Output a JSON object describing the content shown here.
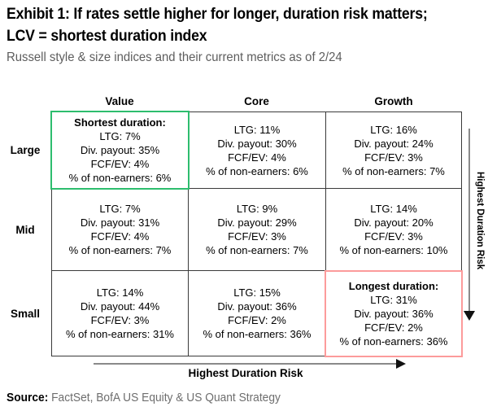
{
  "header": {
    "title_line1": "Exhibit 1: If rates settle higher for longer, duration risk matters;",
    "title_line2": "LCV = shortest duration index",
    "subtitle": "Russell style & size indices and their current metrics as of 2/24"
  },
  "matrix": {
    "column_headers": [
      "Value",
      "Core",
      "Growth"
    ],
    "rows": [
      {
        "label": "Large",
        "cells": [
          {
            "title": "Shortest duration:",
            "highlight": "green",
            "metrics": [
              "LTG: 7%",
              "Div. payout: 35%",
              "FCF/EV: 4%",
              "% of non-earners: 6%"
            ]
          },
          {
            "metrics": [
              "LTG: 11%",
              "Div. payout: 30%",
              "FCF/EV: 4%",
              "% of non-earners: 6%"
            ]
          },
          {
            "metrics": [
              "LTG: 16%",
              "Div. payout: 24%",
              "FCF/EV: 3%",
              "% of non-earners: 7%"
            ]
          }
        ]
      },
      {
        "label": "Mid",
        "cells": [
          {
            "metrics": [
              "LTG: 7%",
              "Div. payout: 31%",
              "FCF/EV: 4%",
              "% of non-earners: 7%"
            ]
          },
          {
            "metrics": [
              "LTG: 9%",
              "Div. payout: 29%",
              "FCF/EV: 3%",
              "% of non-earners: 7%"
            ]
          },
          {
            "metrics": [
              "LTG: 14%",
              "Div. payout: 20%",
              "FCF/EV: 3%",
              "% of non-earners: 10%"
            ]
          }
        ]
      },
      {
        "label": "Small",
        "cells": [
          {
            "metrics": [
              "LTG: 14%",
              "Div. payout: 44%",
              "FCF/EV: 3%",
              "% of non-earners: 31%"
            ]
          },
          {
            "metrics": [
              "LTG: 15%",
              "Div. payout: 36%",
              "FCF/EV: 2%",
              "% of non-earners: 36%"
            ]
          },
          {
            "title": "Longest duration:",
            "highlight": "red",
            "metrics": [
              "LTG: 31%",
              "Div. payout: 36%",
              "FCF/EV: 2%",
              "% of non-earners: 36%"
            ]
          }
        ]
      }
    ]
  },
  "axes": {
    "bottom_label": "Highest Duration Risk",
    "right_label": "Highest Duration Risk"
  },
  "source": {
    "label": "Source:",
    "text": " FactSet, BofA US Equity & US Quant Strategy"
  },
  "colors": {
    "highlight_green": "#2ebd6e",
    "highlight_red": "#fc9b9b",
    "subtitle_gray": "#5d5d5d",
    "source_gray": "#6e6e6e"
  },
  "chart_data": {
    "type": "table",
    "title": "Exhibit 1: If rates settle higher for longer, duration risk matters; LCV = shortest duration index",
    "subtitle": "Russell style & size indices and their current metrics as of 2/24",
    "columns": [
      "Value",
      "Core",
      "Growth"
    ],
    "rows": [
      "Large",
      "Mid",
      "Small"
    ],
    "metrics": [
      "LTG",
      "Div. payout",
      "FCF/EV",
      "% of non-earners"
    ],
    "values_pct": {
      "Large": {
        "Value": {
          "LTG": 7,
          "Div. payout": 35,
          "FCF/EV": 4,
          "% of non-earners": 6
        },
        "Core": {
          "LTG": 11,
          "Div. payout": 30,
          "FCF/EV": 4,
          "% of non-earners": 6
        },
        "Growth": {
          "LTG": 16,
          "Div. payout": 24,
          "FCF/EV": 3,
          "% of non-earners": 7
        }
      },
      "Mid": {
        "Value": {
          "LTG": 7,
          "Div. payout": 31,
          "FCF/EV": 4,
          "% of non-earners": 7
        },
        "Core": {
          "LTG": 9,
          "Div. payout": 29,
          "FCF/EV": 3,
          "% of non-earners": 7
        },
        "Growth": {
          "LTG": 14,
          "Div. payout": 20,
          "FCF/EV": 3,
          "% of non-earners": 10
        }
      },
      "Small": {
        "Value": {
          "LTG": 14,
          "Div. payout": 44,
          "FCF/EV": 3,
          "% of non-earners": 31
        },
        "Core": {
          "LTG": 15,
          "Div. payout": 36,
          "FCF/EV": 2,
          "% of non-earners": 36
        },
        "Growth": {
          "LTG": 31,
          "Div. payout": 36,
          "FCF/EV": 2,
          "% of non-earners": 36
        }
      }
    },
    "annotations": [
      "Shortest duration: Large Value cell highlighted green",
      "Longest duration: Small Growth cell highlighted red"
    ],
    "axis_labels": {
      "bottom": "Highest Duration Risk (arrow pointing right)",
      "right": "Highest Duration Risk (arrow pointing down)"
    },
    "source": "Source: FactSet, BofA US Equity & US Quant Strategy"
  }
}
